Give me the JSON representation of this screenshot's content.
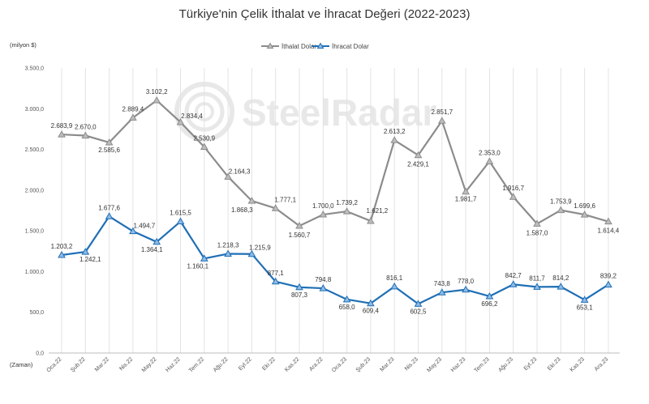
{
  "chart_data": {
    "type": "line",
    "title": "Türkiye'nin Çelik İthalat ve İhracat Değeri (2022-2023)",
    "ylabel": "(milyon $)",
    "xlabel": "(Zaman)",
    "ylim": [
      0,
      3500
    ],
    "yticks": [
      "0,0",
      "500,0",
      "1.000,0",
      "1.500,0",
      "2.000,0",
      "2.500,0",
      "3.000,0",
      "3.500,0"
    ],
    "categories": [
      "Oca.22",
      "Şub.22",
      "Mar.22",
      "Nis.22",
      "May.22",
      "Haz.22",
      "Tem.22",
      "Ağu.22",
      "Eyl.22",
      "Eki.22",
      "Kas.22",
      "Ara.22",
      "Oca.23",
      "Şub.23",
      "Mar.23",
      "Nis.23",
      "May.23",
      "Haz.23",
      "Tem.23",
      "Ağu.23",
      "Eyl.23",
      "Eki.23",
      "Kas.23",
      "Ara.23"
    ],
    "legend_position": "top",
    "grid": "vertical",
    "series": [
      {
        "name": "İthalat Dolar",
        "color": "#8c8c8c",
        "values": [
          2683.9,
          2670.0,
          2585.6,
          2889.4,
          3102.2,
          2834.4,
          2530.9,
          2164.3,
          1868.3,
          1777.1,
          1560.7,
          1700.0,
          1739.2,
          1621.2,
          2613.2,
          2429.1,
          2851.7,
          1981.7,
          2353.0,
          1916.7,
          1587.0,
          1753.9,
          1699.6,
          1614.4
        ],
        "labels": [
          "2.683,9",
          "2.670,0",
          "2.585,6",
          "2.889,4",
          "3.102,2",
          "2.834,4",
          "2.530,9",
          "2.164,3",
          "1.868,3",
          "1.777,1",
          "1.560,7",
          "1.700,0",
          "1.739,2",
          "1.621,2",
          "2.613,2",
          "2.429,1",
          "2.851,7",
          "1.981,7",
          "2.353,0",
          "1.916,7",
          "1.587,0",
          "1.753,9",
          "1.699,6",
          "1.614,4"
        ]
      },
      {
        "name": "İhracat Dolar",
        "color": "#1f6fb5",
        "values": [
          1203.2,
          1242.1,
          1677.6,
          1494.7,
          1364.1,
          1615.5,
          1160.1,
          1218.3,
          1215.9,
          877.1,
          807.3,
          794.8,
          658.0,
          609.4,
          816.1,
          602.5,
          743.8,
          778.0,
          696.2,
          842.7,
          811.7,
          814.2,
          653.1,
          839.2
        ],
        "labels": [
          "1.203,2",
          "1.242,1",
          "1.677,6",
          "1.494,7",
          "1.364,1",
          "1.615,5",
          "1.160,1",
          "1.218,3",
          "1.215,9",
          "877,1",
          "807,3",
          "794,8",
          "658,0",
          "609,4",
          "816,1",
          "602,5",
          "743,8",
          "778,0",
          "696,2",
          "842,7",
          "811,7",
          "814,2",
          "653,1",
          "839,2"
        ]
      }
    ]
  },
  "watermark": {
    "text": "SteelRadar"
  }
}
